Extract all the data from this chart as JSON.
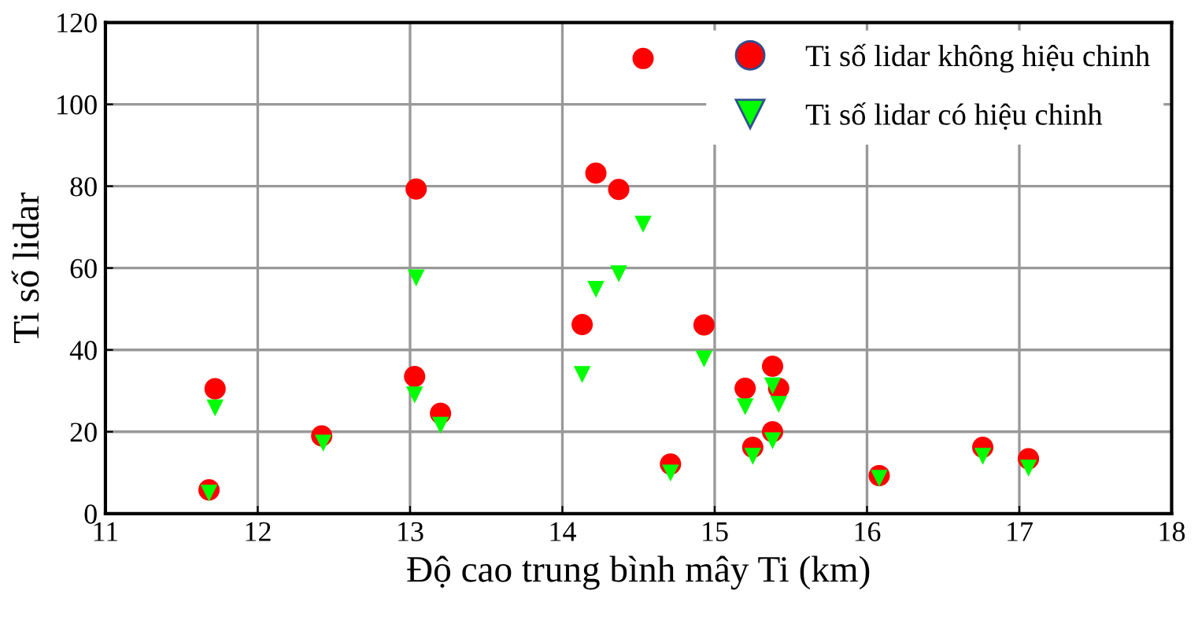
{
  "chart_data": {
    "type": "scatter",
    "xlabel": "Độ cao trung bình mây Ti (km)",
    "ylabel": "Ti số lidar",
    "xlim": [
      11,
      18
    ],
    "xticks": [
      11,
      12,
      13,
      14,
      15,
      16,
      17,
      18
    ],
    "ylim": [
      0,
      120
    ],
    "yticks": [
      0,
      20,
      40,
      60,
      80,
      100,
      120
    ],
    "grid": true,
    "legend": "top right",
    "series": [
      {
        "name": "Ti số lidar không hiệu chinh",
        "color": "#ff0000",
        "marker": "circle",
        "x": [
          11.72,
          12.42,
          13.04,
          13.03,
          13.2,
          11.68,
          14.13,
          14.22,
          14.37,
          14.53,
          14.93,
          14.71,
          15.2,
          15.38,
          15.42,
          15.25,
          15.38,
          16.08,
          16.76,
          17.06
        ],
        "values": [
          30.5,
          19,
          79.3,
          33.5,
          24.5,
          5.8,
          46.2,
          83.2,
          79.2,
          111.2,
          46.1,
          12.1,
          30.6,
          36,
          30.6,
          16.2,
          20,
          9.3,
          16.2,
          13.4
        ]
      },
      {
        "name": "Ti số lidar có hiệu chinh",
        "color": "#00ff00",
        "marker": "triangle",
        "x": [
          11.72,
          11.68,
          12.43,
          13.04,
          13.03,
          13.2,
          14.13,
          14.22,
          14.37,
          14.53,
          14.93,
          14.71,
          15.2,
          15.38,
          15.42,
          15.25,
          15.38,
          16.08,
          16.76,
          17.06
        ],
        "values": [
          25.8,
          5,
          17.2,
          57.6,
          29,
          21.6,
          34,
          54.8,
          58.6,
          70.7,
          37.8,
          9.9,
          26.1,
          31.2,
          26.7,
          14,
          17.8,
          8.6,
          14,
          11.1
        ]
      }
    ]
  }
}
